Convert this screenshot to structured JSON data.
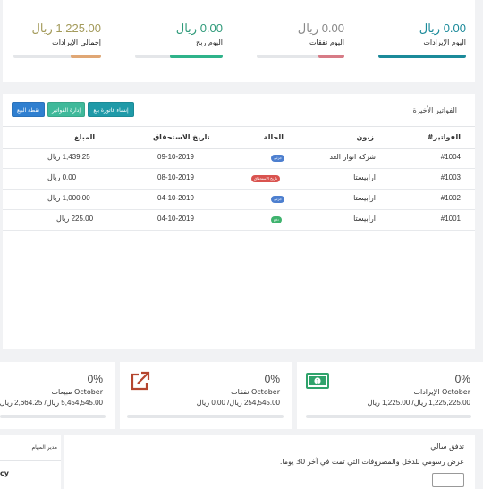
{
  "stats": [
    {
      "value": "0.00 ريال",
      "label": "اليوم الإيرادات",
      "color": "#1b8a9a",
      "fill": 1.0
    },
    {
      "value": "0.00 ريال",
      "label": "اليوم نفقات",
      "color": "#d77b86",
      "fill": 0.3
    },
    {
      "value": "0.00 ريال",
      "label": "اليوم ربح",
      "color": "#2fb38a",
      "fill": 0.6
    },
    {
      "value": "1,225.00 ريال",
      "label": "إجمالي الإيرادات",
      "color": "#e0a775",
      "fill": 0.35
    }
  ],
  "invoices": {
    "title": "الفواتير الأخيرة",
    "buttons": {
      "sales": "نقطة البيع",
      "manage": "إدارة الفواتير",
      "create": "إنشاء فاتورة بيع"
    },
    "headers": {
      "number": "الفواتير#",
      "customer": "زبون",
      "status": "الحالة",
      "due": "تاريخ الاستحقاق",
      "amount": "المبلغ"
    },
    "rows": [
      {
        "number": "#1004",
        "customer": "شركة انوار الغد",
        "status": "جزئي",
        "status_color": "#4d7fcf",
        "due": "09-10-2019",
        "amount": "1,439.25 ريال"
      },
      {
        "number": "#1003",
        "customer": "ارابيستا",
        "status": "تاريخ الاستحقاق",
        "status_color": "#d9534f",
        "due": "08-10-2019",
        "amount": "0.00 ريال"
      },
      {
        "number": "#1002",
        "customer": "ارابيستا",
        "status": "جزئي",
        "status_color": "#4d7fcf",
        "due": "04-10-2019",
        "amount": "1,000.00 ريال"
      },
      {
        "number": "#1001",
        "customer": "ارابيستا",
        "status": "دفع",
        "status_color": "#3fb36e",
        "due": "04-10-2019",
        "amount": "225.00 ريال"
      }
    ]
  },
  "kpis": [
    {
      "percent": "0%",
      "line1": "October الإيرادات",
      "line2": "1,225,225.00 ريال/ 1,225.00 ريال",
      "icon": "money-icon",
      "color": "#2fa36b"
    },
    {
      "percent": "0%",
      "line1": "October نفقات",
      "line2": "254,545.00 ريال/ 0.00 ريال",
      "icon": "external-link-icon",
      "color": "#b5462f"
    },
    {
      "percent": "0%",
      "line1": "October مبيعات",
      "line2": "5,454,545.00 ريال/ 2,664.25 ريال",
      "icon": "",
      "color": ""
    }
  ],
  "tasks": {
    "title": "مدير المهام",
    "fragment": "cy"
  },
  "cashflow": {
    "title": "تدفق سالي",
    "desc": "عرض رسومي للدخل والمصروفات التي تمت في آخر 30 يوما."
  }
}
